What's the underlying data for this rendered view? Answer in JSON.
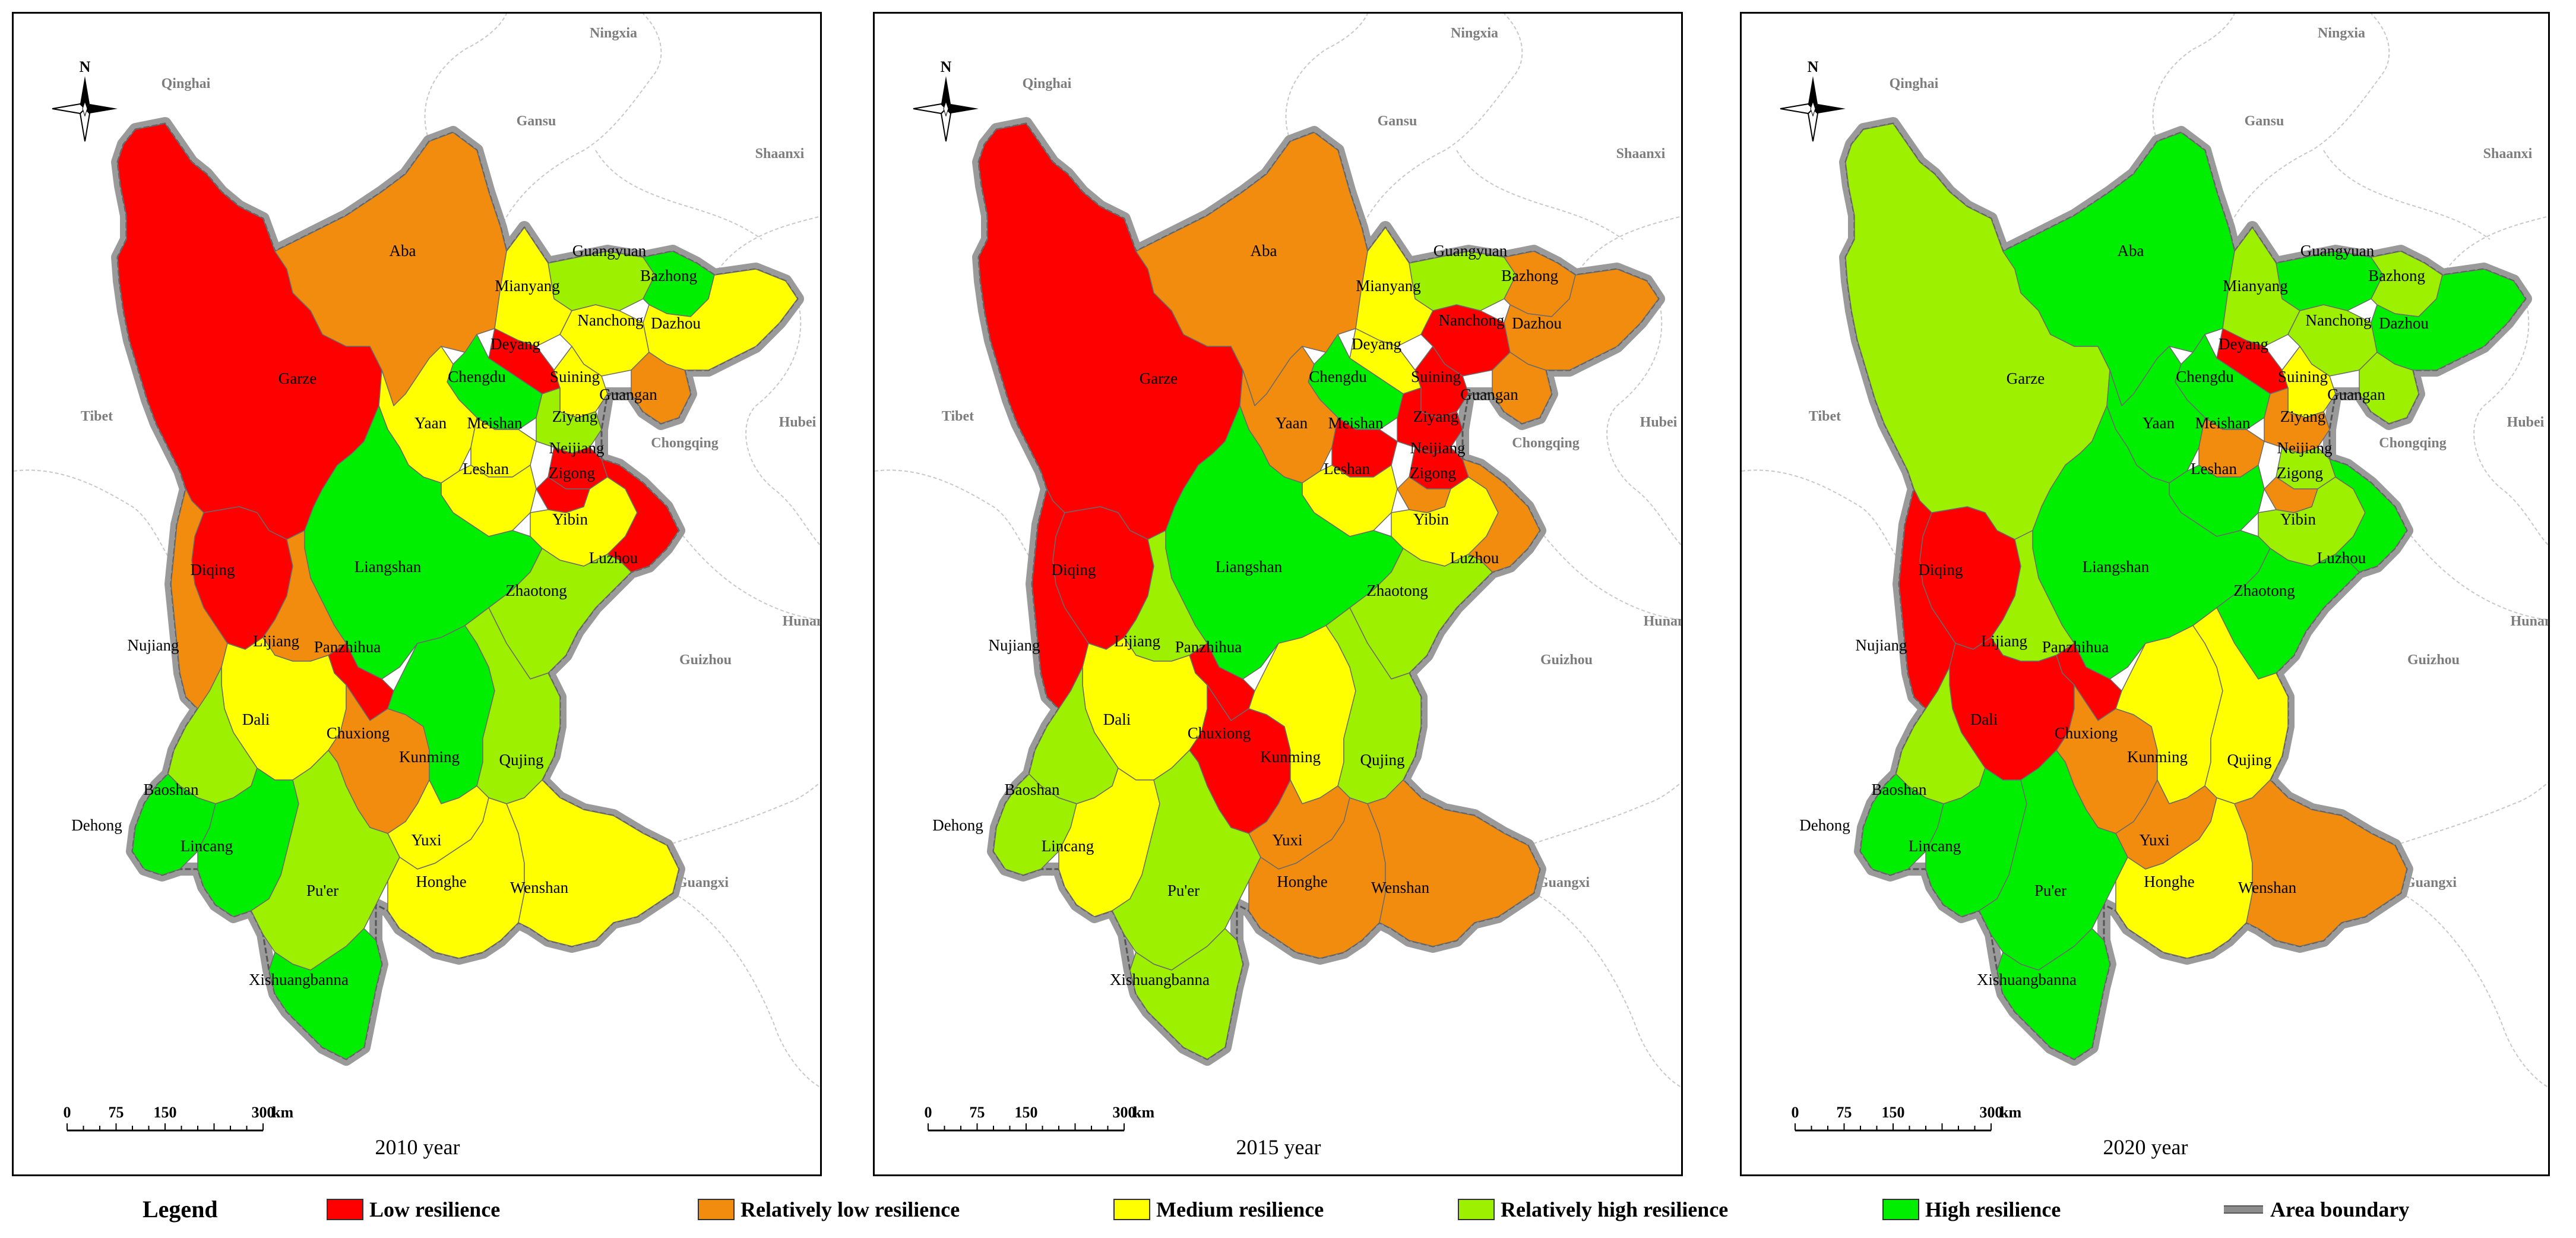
{
  "colors": {
    "low": "#ff0000",
    "rel_low": "#f28c0f",
    "medium": "#ffff00",
    "rel_high": "#9cf000",
    "high": "#00ee00"
  },
  "neighbors": [
    "Ningxia",
    "Qinghai",
    "Gansu",
    "Shaanxi",
    "Tibet",
    "Hubei",
    "Chongqing",
    "Hunan",
    "Guizhou",
    "Guangxi"
  ],
  "scale": {
    "ticks": [
      "0",
      "75",
      "150",
      "300"
    ],
    "unit": "km"
  },
  "north_label": "N",
  "panels": [
    {
      "year": "2010 year",
      "classes": {
        "Garze": "low",
        "Aba": "rel_low",
        "Guangyuan": "rel_high",
        "Bazhong": "high",
        "Mianyang": "medium",
        "Nanchong": "medium",
        "Dazhou": "medium",
        "Deyang": "low",
        "Chengdu": "high",
        "Suining": "medium",
        "Guangan": "rel_low",
        "Ziyang": "rel_high",
        "Yaan": "medium",
        "Meishan": "medium",
        "Neijiang": "low",
        "Leshan": "medium",
        "Zigong": "low",
        "Yibin": "medium",
        "Luzhou": "low",
        "Liangshan": "high",
        "Zhaotong": "rel_high",
        "Diqing": "low",
        "Nujiang": "rel_low",
        "Lijiang": "rel_low",
        "Panzhihua": "low",
        "Dali": "medium",
        "Chuxiong": "rel_low",
        "Kunming": "high",
        "Qujing": "rel_high",
        "Baoshan": "rel_high",
        "Dehong": "high",
        "Lincang": "high",
        "Yuxi": "medium",
        "Pu'er": "rel_high",
        "Honghe": "medium",
        "Wenshan": "medium",
        "Xishuangbanna": "high"
      }
    },
    {
      "year": "2015 year",
      "classes": {
        "Garze": "low",
        "Aba": "rel_low",
        "Guangyuan": "rel_high",
        "Bazhong": "rel_low",
        "Mianyang": "medium",
        "Nanchong": "low",
        "Dazhou": "rel_low",
        "Deyang": "medium",
        "Chengdu": "high",
        "Suining": "low",
        "Guangan": "rel_low",
        "Ziyang": "low",
        "Yaan": "rel_low",
        "Meishan": "low",
        "Neijiang": "low",
        "Leshan": "medium",
        "Zigong": "rel_low",
        "Yibin": "medium",
        "Luzhou": "rel_low",
        "Liangshan": "high",
        "Zhaotong": "rel_high",
        "Diqing": "low",
        "Nujiang": "low",
        "Lijiang": "rel_high",
        "Panzhihua": "low",
        "Dali": "medium",
        "Chuxiong": "low",
        "Kunming": "medium",
        "Qujing": "rel_high",
        "Baoshan": "rel_high",
        "Dehong": "rel_high",
        "Lincang": "medium",
        "Yuxi": "rel_low",
        "Pu'er": "rel_high",
        "Honghe": "rel_low",
        "Wenshan": "rel_low",
        "Xishuangbanna": "rel_high"
      }
    },
    {
      "year": "2020 year",
      "classes": {
        "Garze": "rel_high",
        "Aba": "high",
        "Guangyuan": "high",
        "Bazhong": "rel_high",
        "Mianyang": "rel_high",
        "Nanchong": "rel_high",
        "Dazhou": "high",
        "Deyang": "low",
        "Chengdu": "high",
        "Suining": "medium",
        "Guangan": "rel_high",
        "Ziyang": "rel_low",
        "Yaan": "high",
        "Meishan": "rel_low",
        "Neijiang": "rel_high",
        "Leshan": "high",
        "Zigong": "rel_low",
        "Yibin": "rel_high",
        "Luzhou": "high",
        "Liangshan": "high",
        "Zhaotong": "high",
        "Diqing": "low",
        "Nujiang": "low",
        "Lijiang": "rel_high",
        "Panzhihua": "low",
        "Dali": "low",
        "Chuxiong": "rel_low",
        "Kunming": "medium",
        "Qujing": "medium",
        "Baoshan": "rel_high",
        "Dehong": "high",
        "Lincang": "high",
        "Yuxi": "rel_low",
        "Pu'er": "high",
        "Honghe": "medium",
        "Wenshan": "rel_low",
        "Xishuangbanna": "high"
      }
    }
  ],
  "legend": {
    "title": "Legend",
    "items": [
      {
        "key": "low",
        "label": "Low resilience"
      },
      {
        "key": "rel_low",
        "label": "Relatively low resilience"
      },
      {
        "key": "medium",
        "label": "Medium resilience"
      },
      {
        "key": "rel_high",
        "label": "Relatively high resilience"
      },
      {
        "key": "high",
        "label": "High resilience"
      }
    ],
    "boundary_label": "Area boundary"
  }
}
